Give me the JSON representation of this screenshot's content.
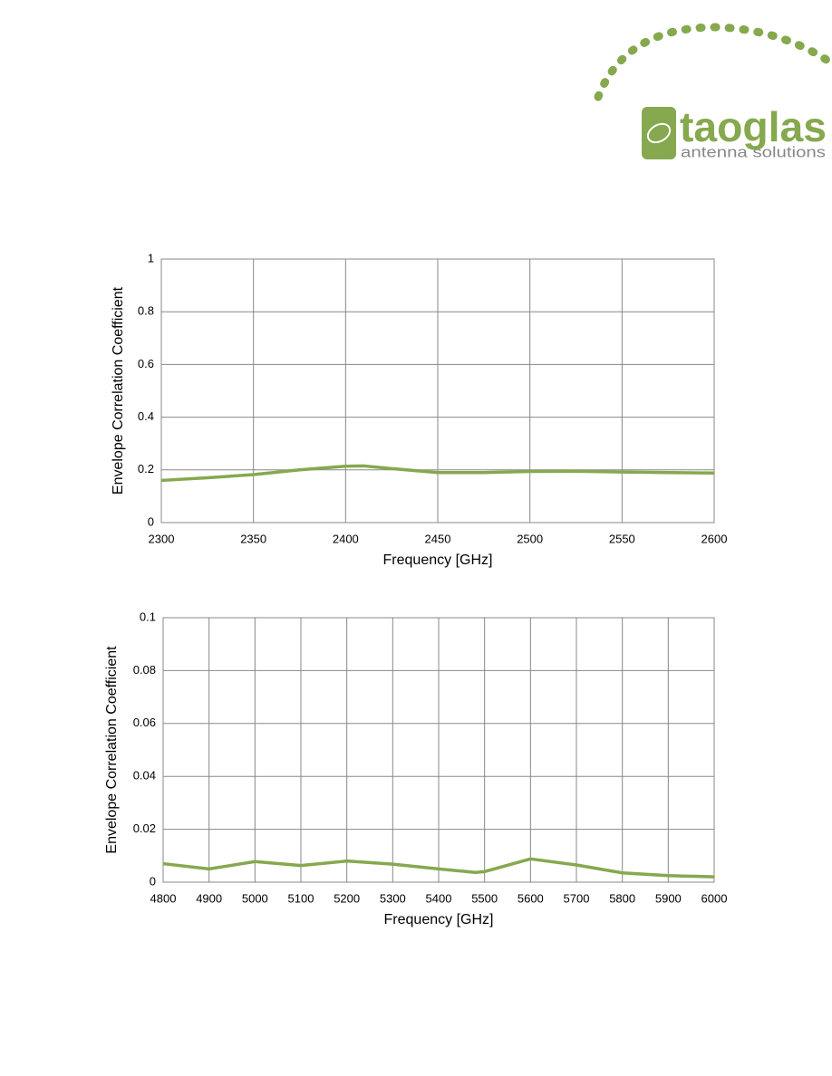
{
  "header": {
    "logo": "taoglas",
    "tagline": "antenna solutions"
  },
  "chart_data": [
    {
      "type": "line",
      "ylabel": "Envelope Correlation Coefficient",
      "xlabel": "Frequency [GHz]",
      "x": [
        2300,
        2325,
        2350,
        2375,
        2400,
        2410,
        2425,
        2450,
        2475,
        2500,
        2525,
        2550,
        2575,
        2600
      ],
      "series": [
        {
          "color": "#86a84e",
          "values": [
            0.16,
            0.17,
            0.182,
            0.2,
            0.214,
            0.215,
            0.205,
            0.19,
            0.19,
            0.194,
            0.195,
            0.192,
            0.19,
            0.188
          ]
        }
      ],
      "xlim": [
        2300,
        2600
      ],
      "xticks": [
        2300,
        2350,
        2400,
        2450,
        2500,
        2550,
        2600
      ],
      "ylim": [
        0,
        1
      ],
      "yticks": [
        0,
        0.2,
        0.4,
        0.6,
        0.8,
        1
      ],
      "grid": true
    },
    {
      "type": "line",
      "ylabel": "Envelope Correlation Coefficient",
      "xlabel": "Frequency [GHz]",
      "x": [
        4800,
        4900,
        5000,
        5100,
        5200,
        5300,
        5400,
        5480,
        5500,
        5600,
        5700,
        5800,
        5900,
        6000
      ],
      "series": [
        {
          "color": "#86a84e",
          "values": [
            0.007,
            0.005,
            0.0078,
            0.0063,
            0.008,
            0.0068,
            0.005,
            0.0037,
            0.004,
            0.0088,
            0.0065,
            0.0035,
            0.0025,
            0.002
          ]
        }
      ],
      "xlim": [
        4800,
        6000
      ],
      "xticks": [
        4800,
        4900,
        5000,
        5100,
        5200,
        5300,
        5400,
        5500,
        5600,
        5700,
        5800,
        5900,
        6000
      ],
      "ylim": [
        0,
        0.1
      ],
      "yticks": [
        0,
        0.02,
        0.04,
        0.06,
        0.08,
        0.1
      ],
      "grid": true
    }
  ]
}
